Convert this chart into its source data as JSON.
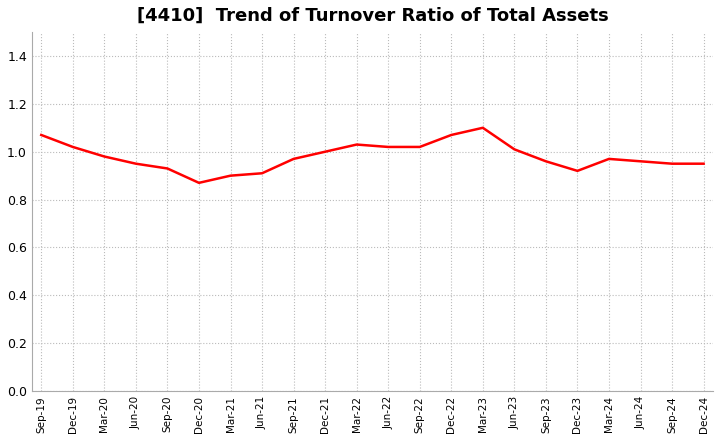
{
  "title": "[4410]  Trend of Turnover Ratio of Total Assets",
  "title_fontsize": 13,
  "line_color": "#FF0000",
  "line_width": 1.8,
  "background_color": "#FFFFFF",
  "plot_bg_color": "#FFFFFF",
  "ylim": [
    0.0,
    1.5
  ],
  "yticks": [
    0.0,
    0.2,
    0.4,
    0.6,
    0.8,
    1.0,
    1.2,
    1.4
  ],
  "grid_color": "#BBBBBB",
  "grid_style": "dotted",
  "x_labels": [
    "Sep-19",
    "Dec-19",
    "Mar-20",
    "Jun-20",
    "Sep-20",
    "Dec-20",
    "Mar-21",
    "Jun-21",
    "Sep-21",
    "Dec-21",
    "Mar-22",
    "Jun-22",
    "Sep-22",
    "Dec-22",
    "Mar-23",
    "Jun-23",
    "Sep-23",
    "Dec-23",
    "Mar-24",
    "Jun-24",
    "Sep-24",
    "Dec-24"
  ],
  "y_values": [
    1.07,
    1.02,
    0.98,
    0.95,
    0.93,
    0.87,
    0.9,
    0.91,
    0.97,
    1.0,
    1.03,
    1.02,
    1.02,
    1.07,
    1.1,
    1.01,
    0.96,
    0.92,
    0.97,
    0.96,
    0.95,
    0.95
  ]
}
